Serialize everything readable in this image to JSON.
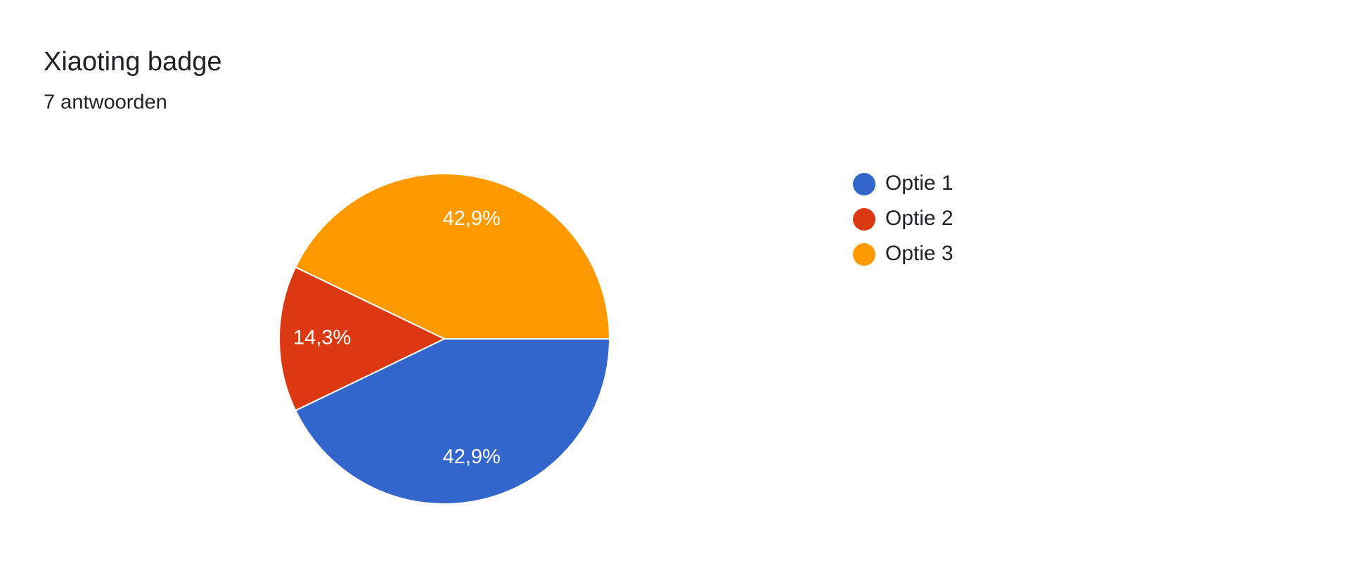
{
  "chart_data": {
    "type": "pie",
    "title": "Xiaoting badge",
    "subtitle": "7 antwoorden",
    "categories": [
      "Optie 1",
      "Optie 2",
      "Optie 3"
    ],
    "values": [
      42.9,
      14.3,
      42.9
    ],
    "value_labels": [
      "42,9%",
      "14,3%",
      "42,9%"
    ],
    "colors": [
      "#3366cc",
      "#dc3912",
      "#ff9900"
    ],
    "legend": "right"
  }
}
